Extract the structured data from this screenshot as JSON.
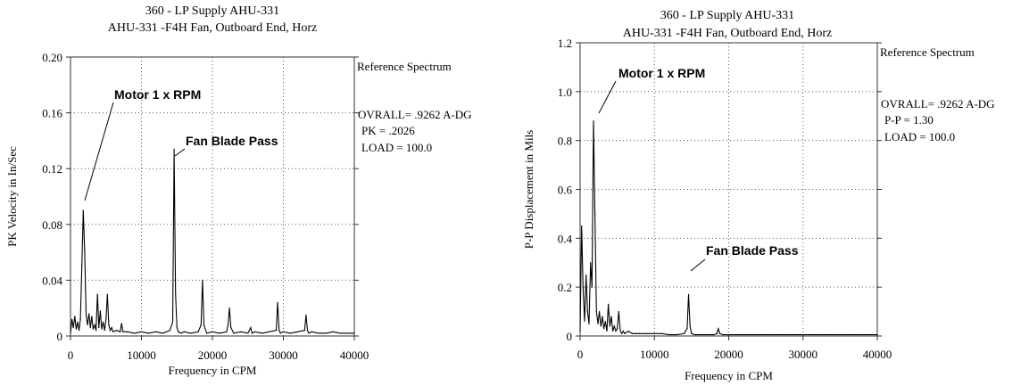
{
  "chart_data": [
    {
      "type": "line",
      "title": "360  - LP Supply AHU-331",
      "subtitle": "AHU-331   -F4H   Fan, Outboard End, Horz",
      "xlabel": "Frequency in CPM",
      "ylabel": "PK Velocity in In/Sec",
      "xlim": [
        0,
        40000
      ],
      "ylim": [
        0,
        0.2
      ],
      "x_ticks": [
        "0",
        "10000",
        "20000",
        "30000",
        "40000"
      ],
      "y_ticks": [
        "0",
        "0.04",
        "0.08",
        "0.12",
        "0.16",
        "0.20"
      ],
      "grid": true,
      "side_panel": {
        "heading": "Reference Spectrum",
        "lines": [
          "OVRALL= .9262 A-DG",
          " PK  = .2026",
          " LOAD = 100.0"
        ]
      },
      "annotations": [
        {
          "text": "Motor 1 x RPM",
          "x": 1800,
          "y": 0.09
        },
        {
          "text": "Fan Blade Pass",
          "x": 14700,
          "y": 0.134
        }
      ],
      "series": [
        {
          "x": [
            0,
            200,
            400,
            600,
            800,
            1000,
            1200,
            1400,
            1600,
            1800,
            2000,
            2200,
            2400,
            2600,
            2800,
            3000,
            3200,
            3400,
            3600,
            3800,
            4000,
            4200,
            4400,
            4600,
            4800,
            5000,
            5200,
            5400,
            5600,
            5800,
            6000,
            6500,
            7000,
            7200,
            7400,
            8000,
            9000,
            10000,
            11000,
            12000,
            13000,
            14000,
            14400,
            14600,
            14800,
            15000,
            15200,
            15600,
            16000,
            17000,
            18000,
            18400,
            18600,
            18800,
            19200,
            20000,
            21000,
            22000,
            22200,
            22400,
            22600,
            23000,
            24000,
            25000,
            25400,
            25600,
            26000,
            27000,
            28000,
            29000,
            29200,
            29400,
            29600,
            30000,
            31000,
            32000,
            33000,
            33200,
            33400,
            33600,
            34000,
            35000,
            36000,
            37000,
            38000,
            39000,
            40000
          ],
          "values": [
            0.002,
            0.012,
            0.006,
            0.014,
            0.005,
            0.01,
            0.004,
            0.012,
            0.05,
            0.09,
            0.06,
            0.015,
            0.008,
            0.016,
            0.006,
            0.014,
            0.005,
            0.008,
            0.004,
            0.03,
            0.006,
            0.018,
            0.005,
            0.01,
            0.004,
            0.012,
            0.03,
            0.008,
            0.004,
            0.006,
            0.003,
            0.004,
            0.003,
            0.009,
            0.003,
            0.003,
            0.002,
            0.003,
            0.002,
            0.003,
            0.002,
            0.004,
            0.01,
            0.134,
            0.03,
            0.006,
            0.003,
            0.002,
            0.003,
            0.002,
            0.003,
            0.008,
            0.04,
            0.008,
            0.002,
            0.003,
            0.002,
            0.003,
            0.008,
            0.02,
            0.006,
            0.002,
            0.003,
            0.002,
            0.006,
            0.002,
            0.003,
            0.002,
            0.003,
            0.004,
            0.024,
            0.004,
            0.002,
            0.003,
            0.002,
            0.003,
            0.004,
            0.015,
            0.004,
            0.002,
            0.003,
            0.002,
            0.002,
            0.003,
            0.002,
            0.002,
            0.002
          ]
        }
      ]
    },
    {
      "type": "line",
      "title": "360  - LP Supply AHU-331",
      "subtitle": "AHU-331   -F4H   Fan, Outboard End, Horz",
      "xlabel": "Frequency in CPM",
      "ylabel": "P-P Displacement in Mils",
      "xlim": [
        0,
        40000
      ],
      "ylim": [
        0,
        1.2
      ],
      "x_ticks": [
        "0",
        "10000",
        "20000",
        "30000",
        "40000"
      ],
      "y_ticks": [
        "0",
        "0.2",
        "0.4",
        "0.6",
        "0.8",
        "1.0",
        "1.2"
      ],
      "grid": true,
      "side_panel": {
        "heading": "Reference Spectrum",
        "lines": [
          "OVRALL= .9262 A-DG",
          " P-P = 1.30",
          " LOAD = 100.0"
        ]
      },
      "annotations": [
        {
          "text": "Motor 1 x RPM",
          "x": 1800,
          "y": 0.88
        },
        {
          "text": "Fan Blade Pass",
          "x": 14700,
          "y": 0.18
        }
      ],
      "series": [
        {
          "x": [
            0,
            200,
            400,
            600,
            800,
            1000,
            1200,
            1400,
            1600,
            1800,
            2000,
            2200,
            2400,
            2600,
            2800,
            3000,
            3200,
            3400,
            3600,
            3800,
            4000,
            4200,
            4400,
            4600,
            4800,
            5000,
            5200,
            5400,
            5600,
            5800,
            6000,
            6500,
            7000,
            7500,
            8000,
            9000,
            10000,
            11000,
            12000,
            13000,
            14000,
            14400,
            14600,
            14800,
            15000,
            15400,
            16000,
            17000,
            18000,
            18400,
            18600,
            18800,
            19200,
            20000,
            22000,
            24000,
            26000,
            28000,
            30000,
            32000,
            34000,
            36000,
            38000,
            40000
          ],
          "values": [
            0.02,
            0.45,
            0.2,
            0.06,
            0.25,
            0.1,
            0.05,
            0.3,
            0.2,
            0.88,
            0.5,
            0.1,
            0.05,
            0.1,
            0.04,
            0.08,
            0.03,
            0.06,
            0.02,
            0.13,
            0.04,
            0.08,
            0.02,
            0.04,
            0.02,
            0.03,
            0.1,
            0.02,
            0.01,
            0.02,
            0.01,
            0.02,
            0.01,
            0.01,
            0.01,
            0.01,
            0.01,
            0.01,
            0.005,
            0.005,
            0.01,
            0.03,
            0.17,
            0.04,
            0.01,
            0.005,
            0.005,
            0.005,
            0.005,
            0.01,
            0.03,
            0.01,
            0.005,
            0.005,
            0.005,
            0.005,
            0.005,
            0.005,
            0.005,
            0.005,
            0.005,
            0.005,
            0.005,
            0.005
          ]
        }
      ]
    }
  ]
}
